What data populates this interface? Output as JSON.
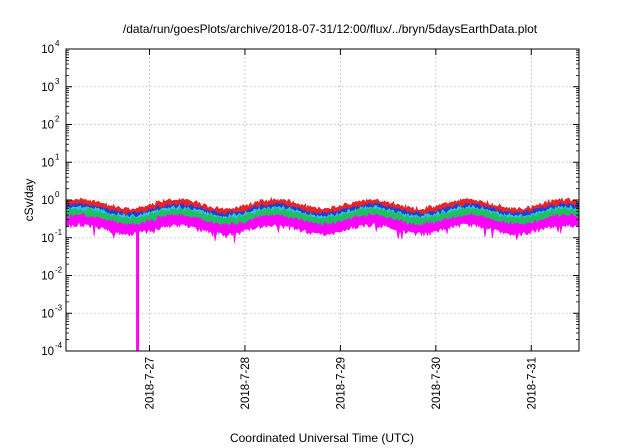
{
  "chart_data": {
    "type": "line",
    "title": "/data/run/goesPlots/archive/2018-07-31/12:00/flux/../bryn/5daysEarthData.plot",
    "xlabel": "Coordinated Universal Time (UTC)",
    "ylabel": "cSv/day",
    "y_scale": "log",
    "ylim": [
      0.0001,
      10000
    ],
    "y_ticks": [
      {
        "base": "10",
        "exp": "-4",
        "value": 0.0001
      },
      {
        "base": "10",
        "exp": "-3",
        "value": 0.001
      },
      {
        "base": "10",
        "exp": "-2",
        "value": 0.01
      },
      {
        "base": "10",
        "exp": "-1",
        "value": 0.1
      },
      {
        "base": "10",
        "exp": "0",
        "value": 1
      },
      {
        "base": "10",
        "exp": "1",
        "value": 10
      },
      {
        "base": "10",
        "exp": "2",
        "value": 100
      },
      {
        "base": "10",
        "exp": "3",
        "value": 1000
      },
      {
        "base": "10",
        "exp": "4",
        "value": 10000
      }
    ],
    "xlim": [
      "2018-07-26T03:00",
      "2018-07-31T12:00"
    ],
    "x_ticks": [
      {
        "label": "2018-7-27",
        "value": "2018-07-27T00:00"
      },
      {
        "label": "2018-7-28",
        "value": "2018-07-28T00:00"
      },
      {
        "label": "2018-7-29",
        "value": "2018-07-29T00:00"
      },
      {
        "label": "2018-7-30",
        "value": "2018-07-30T00:00"
      },
      {
        "label": "2018-7-31",
        "value": "2018-07-31T00:00"
      }
    ],
    "grid": true,
    "series": [
      {
        "color": "#e8232a",
        "level": 0.6
      },
      {
        "color": "#1e3fd6",
        "level": 0.45
      },
      {
        "color": "#2ec4e8",
        "level": 0.38
      },
      {
        "color": "#20c060",
        "level": 0.34
      },
      {
        "color": "#ff00ff",
        "level": 0.23
      }
    ],
    "events": [
      {
        "x": "2018-07-26T21:00",
        "y": 0.0001,
        "color": "#ff00ff"
      }
    ]
  }
}
